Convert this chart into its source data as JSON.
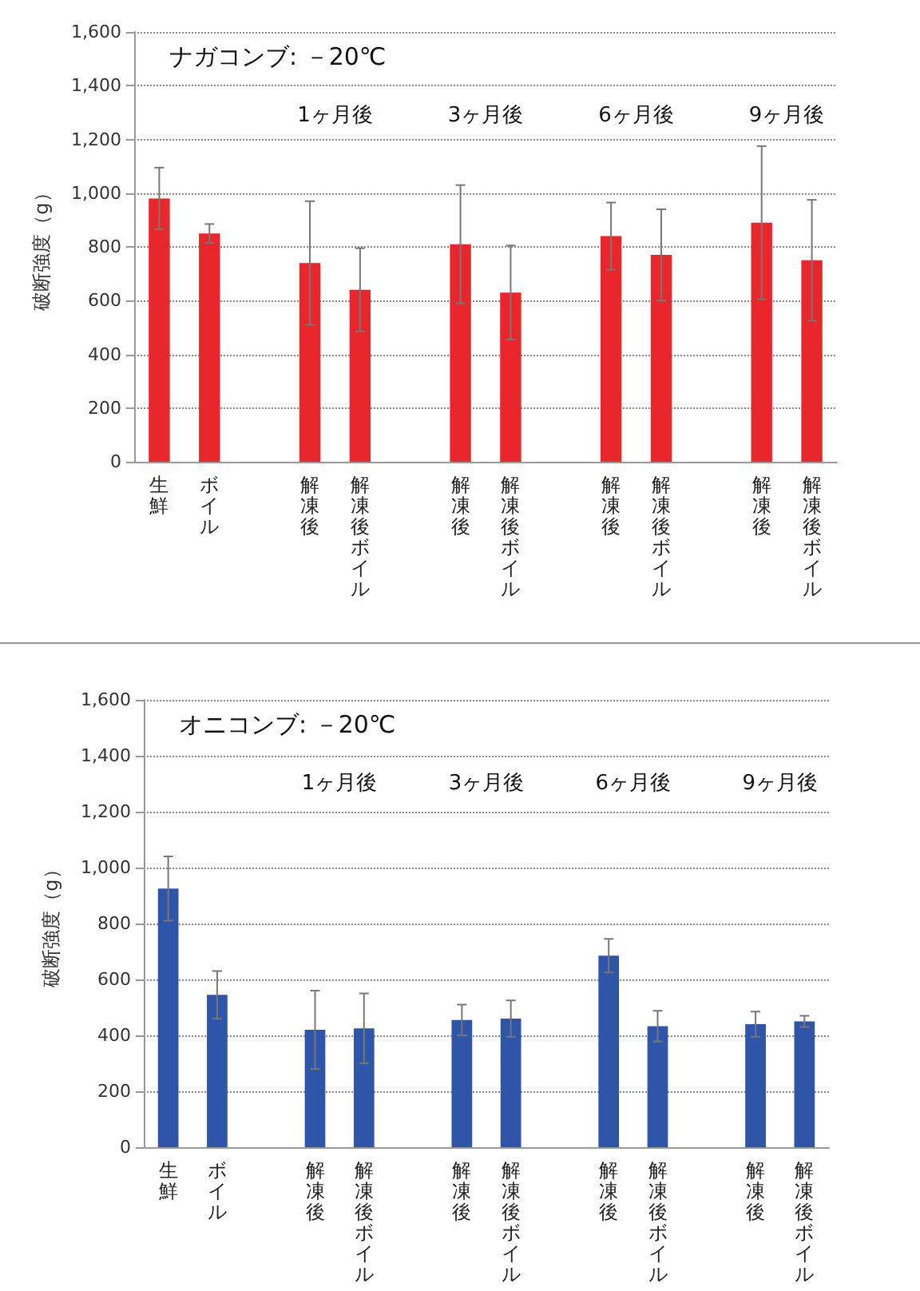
{
  "chart_data": [
    {
      "type": "bar",
      "title": "ナガコンブ: －20℃",
      "ylabel": "破断強度（g）",
      "categories": [
        "生鮮",
        "ボイル",
        null,
        "解凍後",
        "解凍後ボイル",
        null,
        "解凍後",
        "解凍後ボイル",
        null,
        "解凍後",
        "解凍後ボイル",
        null,
        "解凍後",
        "解凍後ボイル"
      ],
      "values": [
        980,
        850,
        null,
        740,
        640,
        null,
        810,
        630,
        null,
        840,
        770,
        null,
        890,
        750
      ],
      "errors": [
        115,
        35,
        null,
        230,
        155,
        null,
        220,
        175,
        null,
        125,
        170,
        null,
        285,
        225
      ],
      "color": "#e8262b",
      "annotations": [
        "1ヶ月後",
        "3ヶ月後",
        "6ヶ月後",
        "9ヶ月後"
      ],
      "ylim": [
        0,
        1600
      ],
      "yticks": [
        0,
        200,
        400,
        600,
        800,
        {
          "value": 1000,
          "label": "1,000"
        },
        {
          "value": 1200,
          "label": "1,200"
        },
        {
          "value": 1400,
          "label": "1,400"
        },
        {
          "value": 1600,
          "label": "1,600"
        }
      ],
      "grid": "y"
    },
    {
      "type": "bar",
      "title": "オニコンブ: －20℃",
      "ylabel": "破断強度（g）",
      "categories": [
        "生鮮",
        "ボイル",
        null,
        "解凍後",
        "解凍後ボイル",
        null,
        "解凍後",
        "解凍後ボイル",
        null,
        "解凍後",
        "解凍後ボイル",
        null,
        "解凍後",
        "解凍後ボイル"
      ],
      "values": [
        925,
        545,
        null,
        420,
        425,
        null,
        455,
        460,
        null,
        685,
        433,
        null,
        440,
        450
      ],
      "errors": [
        115,
        85,
        null,
        140,
        125,
        null,
        55,
        65,
        null,
        60,
        55,
        null,
        45,
        20
      ],
      "color": "#2f55a8",
      "annotations": [
        "1ヶ月後",
        "3ヶ月後",
        "6ヶ月後",
        "9ヶ月後"
      ],
      "ylim": [
        0,
        1600
      ],
      "yticks": [
        0,
        200,
        400,
        600,
        800,
        {
          "value": 1000,
          "label": "1,000"
        },
        {
          "value": 1200,
          "label": "1,200"
        },
        {
          "value": 1400,
          "label": "1,400"
        },
        {
          "value": 1600,
          "label": "1,600"
        }
      ],
      "grid": "y"
    }
  ]
}
